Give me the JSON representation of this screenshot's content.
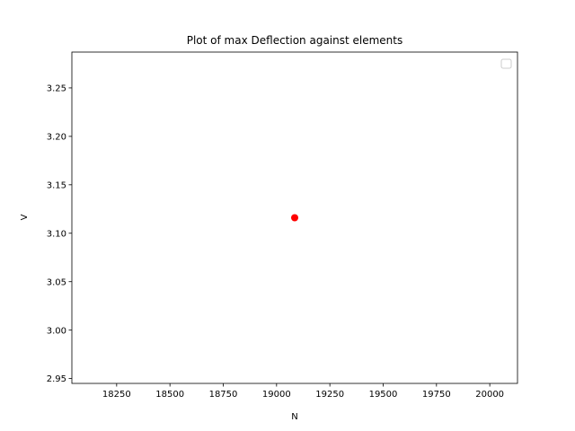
{
  "chart_data": {
    "type": "scatter",
    "title": "Plot of max Deflection against elements",
    "xlabel": "N",
    "ylabel": "V",
    "xlim": [
      18040,
      20130
    ],
    "ylim": [
      2.945,
      3.287
    ],
    "xticks": [
      18250,
      18500,
      18750,
      19000,
      19250,
      19500,
      19750,
      20000
    ],
    "xtick_labels": [
      "18250",
      "18500",
      "18750",
      "19000",
      "19250",
      "19500",
      "19750",
      "20000"
    ],
    "yticks": [
      2.95,
      3.0,
      3.05,
      3.1,
      3.15,
      3.2,
      3.25
    ],
    "ytick_labels": [
      "2.95",
      "3.00",
      "3.05",
      "3.10",
      "3.15",
      "3.20",
      "3.25"
    ],
    "grid": false,
    "legend": {
      "placement": "top-right",
      "entries": []
    },
    "series": [
      {
        "color": "#ff0000",
        "marker": "circle",
        "x": [
          19085
        ],
        "y": [
          3.116
        ]
      }
    ]
  }
}
